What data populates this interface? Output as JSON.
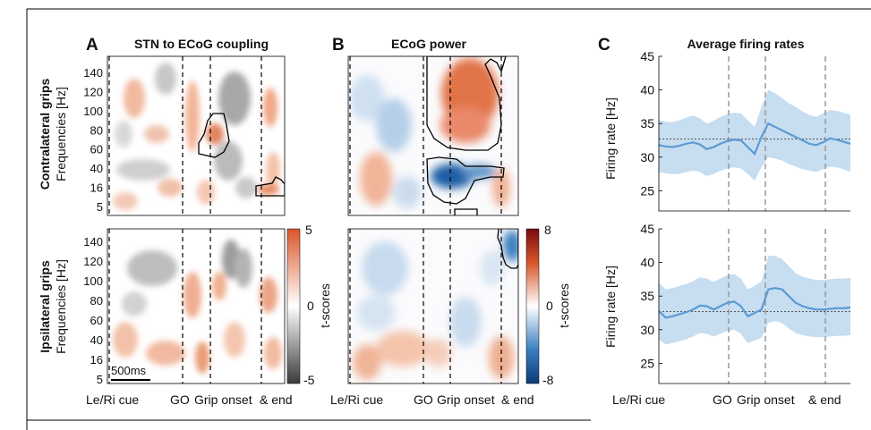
{
  "panels": {
    "A": {
      "letter": "A",
      "title": "STN to ECoG coupling"
    },
    "B": {
      "letter": "B",
      "title": "ECoG power"
    },
    "C": {
      "letter": "C",
      "title": "Average firing rates"
    }
  },
  "row_labels": {
    "contra": "Contralateral grips",
    "ipsi": "Ipsilateral grips"
  },
  "freq_axis_label": "Frequencies [Hz]",
  "firing_axis_label": "Firing rate [Hz]",
  "x_event_labels": {
    "cue": "Le/Ri cue",
    "go": "GO",
    "grip": "Grip onset",
    "end": "& end"
  },
  "scale_bar": "500ms",
  "colorbars": {
    "A": {
      "max": "5",
      "mid": "0",
      "min": "-5",
      "label": "t-scores"
    },
    "B": {
      "max": "8",
      "mid": "0",
      "min": "-8",
      "label": "t-scores"
    }
  },
  "colors": {
    "positive": "#d9562a",
    "negative_gray": "#555555",
    "negative_blue": "#1f5fa6",
    "firing_line": "#5b9bd5",
    "firing_band": "#c7ddf0"
  },
  "chart_data": [
    {
      "type": "heatmap",
      "panel": "A",
      "row": "Contralateral grips",
      "yticks": [
        "5",
        "16",
        "40",
        "60",
        "80",
        "100",
        "120",
        "140"
      ],
      "clim": [
        -5,
        5
      ],
      "event_markers": [
        "Le/Ri cue",
        "GO",
        "Grip onset",
        "& end"
      ],
      "significant_clusters": [
        {
          "freq_range": [
            60,
            95
          ],
          "polarity": "positive"
        },
        {
          "freq_range": [
            10,
            25
          ],
          "polarity": "positive"
        }
      ]
    },
    {
      "type": "heatmap",
      "panel": "A",
      "row": "Ipsilateral grips",
      "yticks": [
        "5",
        "16",
        "40",
        "60",
        "80",
        "100",
        "120",
        "140"
      ],
      "clim": [
        -5,
        5
      ]
    },
    {
      "type": "heatmap",
      "panel": "B",
      "row": "Contralateral grips",
      "yticks": [
        "5",
        "16",
        "40",
        "60",
        "80",
        "100",
        "120",
        "140"
      ],
      "clim": [
        -8,
        8
      ],
      "significant_clusters": [
        {
          "freq_range": [
            60,
            150
          ],
          "polarity": "positive"
        },
        {
          "freq_range": [
            10,
            40
          ],
          "polarity": "negative"
        }
      ]
    },
    {
      "type": "heatmap",
      "panel": "B",
      "row": "Ipsilateral grips",
      "yticks": [
        "5",
        "16",
        "40",
        "60",
        "80",
        "100",
        "120",
        "140"
      ],
      "clim": [
        -8,
        8
      ],
      "significant_clusters": [
        {
          "freq_range": [
            110,
            150
          ],
          "polarity": "negative"
        }
      ]
    },
    {
      "type": "line",
      "panel": "C",
      "row": "Contralateral grips",
      "ylim": [
        22,
        45
      ],
      "yticks": [
        25,
        30,
        35,
        40,
        45
      ],
      "reference": 32.7,
      "series": [
        {
          "values": [
            31.8,
            31.6,
            31.5,
            31.7,
            32.0,
            32.2,
            31.9,
            31.2,
            31.5,
            32.0,
            32.4,
            32.6,
            32.5,
            31.5,
            30.5,
            33.0,
            35.0,
            34.5,
            34.0,
            33.5,
            33.0,
            32.5,
            32.0,
            31.8,
            32.2,
            32.8,
            32.6,
            32.3,
            32.0
          ],
          "lower": [
            27.8,
            27.6,
            27.5,
            27.5,
            27.8,
            28.0,
            27.8,
            27.2,
            27.5,
            28.0,
            28.3,
            28.5,
            28.3,
            27.5,
            26.5,
            28.5,
            30.0,
            29.8,
            29.5,
            29.0,
            28.6,
            28.2,
            28.0,
            27.8,
            28.2,
            28.6,
            28.5,
            28.2,
            27.8
          ],
          "upper": [
            35.5,
            35.3,
            35.2,
            35.5,
            35.9,
            36.2,
            35.8,
            35.0,
            35.4,
            36.0,
            36.4,
            36.6,
            36.5,
            35.5,
            34.5,
            37.5,
            40.0,
            39.5,
            38.8,
            38.0,
            37.5,
            36.8,
            36.3,
            36.0,
            36.5,
            37.0,
            36.9,
            36.6,
            36.3
          ]
        }
      ]
    },
    {
      "type": "line",
      "panel": "C",
      "row": "Ipsilateral grips",
      "ylim": [
        22,
        45
      ],
      "yticks": [
        25,
        30,
        35,
        40,
        45
      ],
      "reference": 32.7,
      "series": [
        {
          "values": [
            32.8,
            31.8,
            32.0,
            32.3,
            32.6,
            33.0,
            33.6,
            33.5,
            33.0,
            33.5,
            34.0,
            34.2,
            33.5,
            32.0,
            32.5,
            33.0,
            36.0,
            36.2,
            36.0,
            35.0,
            34.0,
            33.5,
            33.2,
            33.0,
            33.0,
            33.1,
            33.2,
            33.2,
            33.3
          ],
          "lower": [
            28.5,
            27.8,
            28.0,
            28.3,
            28.6,
            29.0,
            29.5,
            29.4,
            29.0,
            29.4,
            29.8,
            30.0,
            29.4,
            28.0,
            28.4,
            28.8,
            31.0,
            31.3,
            31.0,
            30.2,
            29.5,
            29.2,
            29.0,
            28.9,
            28.9,
            29.0,
            29.1,
            29.1,
            29.2
          ],
          "upper": [
            37.0,
            36.0,
            36.2,
            36.5,
            36.8,
            37.2,
            37.8,
            37.6,
            37.1,
            37.6,
            38.1,
            38.3,
            37.6,
            36.0,
            36.5,
            37.2,
            41.0,
            41.0,
            40.5,
            39.5,
            38.4,
            37.9,
            37.6,
            37.4,
            37.4,
            37.5,
            37.6,
            37.6,
            37.7
          ]
        }
      ]
    }
  ]
}
